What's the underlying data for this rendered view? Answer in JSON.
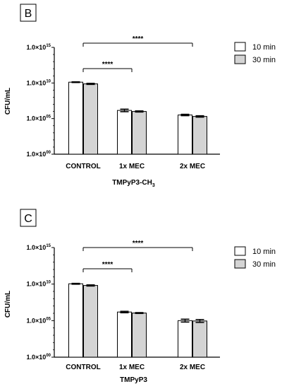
{
  "chart_data": [
    {
      "type": "bar",
      "panel_label": "B",
      "categories": [
        "CONTROL",
        "1x MEC",
        "2x MEC"
      ],
      "xlabel_main": "TMPyP3-CH",
      "xlabel_sub": "3",
      "ylabel": "CFU/mL",
      "y_scale": "log10",
      "ylim": [
        1,
        1000000000000000.0
      ],
      "ytick_labels": [
        {
          "base": "1.0×10",
          "exp": "15"
        },
        {
          "base": "1.0×10",
          "exp": "10"
        },
        {
          "base": "1.0×10",
          "exp": "05"
        },
        {
          "base": "1.0×10",
          "exp": "00"
        }
      ],
      "series": [
        {
          "name": "10 min",
          "color": "#ffffff",
          "values": [
            13000000000.0,
            1400000.0,
            320000.0
          ],
          "errors_log": [
            0.05,
            0.18,
            0.1
          ]
        },
        {
          "name": "30 min",
          "color": "#d4d4d4",
          "values": [
            7500000000.0,
            1000000.0,
            200000.0
          ],
          "errors_log": [
            0.08,
            0.08,
            0.1
          ]
        }
      ],
      "significance": [
        {
          "from": 0,
          "to": 2,
          "label": "****"
        },
        {
          "from": 0,
          "to": 1,
          "label": "****"
        }
      ],
      "legend_position": "top-right",
      "grid": false
    },
    {
      "type": "bar",
      "panel_label": "C",
      "categories": [
        "CONTROL",
        "1x MEC",
        "2x MEC"
      ],
      "xlabel_main": "TMPyP3",
      "xlabel_sub": "",
      "ylabel": "CFU/mL",
      "y_scale": "log10",
      "ylim": [
        1,
        1000000000000000.0
      ],
      "ytick_labels": [
        {
          "base": "1.0×10",
          "exp": "15"
        },
        {
          "base": "1.0×10",
          "exp": "10"
        },
        {
          "base": "1.0×10",
          "exp": "05"
        },
        {
          "base": "1.0×10",
          "exp": "00"
        }
      ],
      "series": [
        {
          "name": "10 min",
          "color": "#ffffff",
          "values": [
            11000000000.0,
            1500000.0,
            100000.0
          ],
          "errors_log": [
            0.06,
            0.1,
            0.2
          ]
        },
        {
          "name": "30 min",
          "color": "#d4d4d4",
          "values": [
            6500000000.0,
            1100000.0,
            90000.0
          ],
          "errors_log": [
            0.08,
            0.06,
            0.2
          ]
        }
      ],
      "significance": [
        {
          "from": 0,
          "to": 2,
          "label": "****"
        },
        {
          "from": 0,
          "to": 1,
          "label": "****"
        }
      ],
      "legend_position": "top-right",
      "grid": false
    }
  ]
}
